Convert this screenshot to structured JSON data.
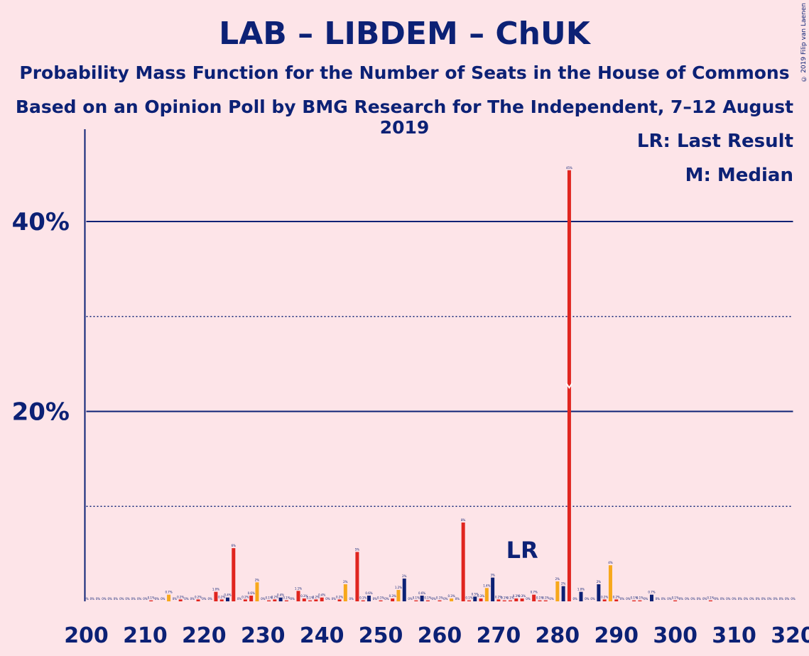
{
  "title": "LAB – LIBDEM – ChUK",
  "subtitle1": "Probability Mass Function for the Number of Seats in the House of Commons",
  "subtitle2": "Based on an Opinion Poll by BMG Research for The Independent, 7–12 August 2019",
  "legend": {
    "lr": "LR: Last Result",
    "median": "M: Median"
  },
  "copyright": "© 2019 Filip van Laenen",
  "chart_data": {
    "type": "bar",
    "xlim": [
      200,
      320
    ],
    "ylim": [
      0,
      49
    ],
    "yticks": [
      {
        "value": 20,
        "label": "20%"
      },
      {
        "value": 40,
        "label": "40%"
      }
    ],
    "dotted_gridlines": [
      10,
      30
    ],
    "xticks": [
      200,
      210,
      220,
      230,
      240,
      250,
      260,
      270,
      280,
      290,
      300,
      310,
      320
    ],
    "last_result": {
      "seat": 274,
      "label": "LR"
    },
    "median": {
      "seat": 282
    },
    "colors": {
      "red": "#e0251f",
      "orange": "#f7a81b",
      "dark": "#0c2175",
      "background": "#fde4e8"
    },
    "bars": [
      {
        "x": 200,
        "v": 0,
        "l": "0%",
        "c": "red"
      },
      {
        "x": 201,
        "v": 0,
        "l": "0%",
        "c": "red"
      },
      {
        "x": 202,
        "v": 0,
        "l": "0%",
        "c": "red"
      },
      {
        "x": 203,
        "v": 0,
        "l": "0%",
        "c": "red"
      },
      {
        "x": 204,
        "v": 0,
        "l": "0%",
        "c": "red"
      },
      {
        "x": 205,
        "v": 0,
        "l": "0%",
        "c": "red"
      },
      {
        "x": 206,
        "v": 0,
        "l": "0%",
        "c": "red"
      },
      {
        "x": 207,
        "v": 0,
        "l": "0%",
        "c": "red"
      },
      {
        "x": 208,
        "v": 0,
        "l": "0%",
        "c": "red"
      },
      {
        "x": 209,
        "v": 0,
        "l": "0%",
        "c": "red"
      },
      {
        "x": 210,
        "v": 0,
        "l": "0%",
        "c": "red"
      },
      {
        "x": 211,
        "v": 0.1,
        "l": "0.1%",
        "c": "red"
      },
      {
        "x": 212,
        "v": 0,
        "l": "0%",
        "c": "red"
      },
      {
        "x": 213,
        "v": 0,
        "l": "0%",
        "c": "red"
      },
      {
        "x": 214,
        "v": 0.7,
        "l": "0.7%",
        "c": "orange"
      },
      {
        "x": 215,
        "v": 0,
        "l": "0%",
        "c": "red"
      },
      {
        "x": 216,
        "v": 0.2,
        "l": "0.2%",
        "c": "red"
      },
      {
        "x": 217,
        "v": 0,
        "l": "0%",
        "c": "red"
      },
      {
        "x": 218,
        "v": 0,
        "l": "0%",
        "c": "red"
      },
      {
        "x": 219,
        "v": 0.2,
        "l": "0.2%",
        "c": "red"
      },
      {
        "x": 220,
        "v": 0,
        "l": "0%",
        "c": "red"
      },
      {
        "x": 221,
        "v": 0,
        "l": "0%",
        "c": "red"
      },
      {
        "x": 222,
        "v": 1.0,
        "l": "1.0%",
        "c": "red"
      },
      {
        "x": 223,
        "v": 0.2,
        "l": "0.2%",
        "c": "red"
      },
      {
        "x": 224,
        "v": 0.4,
        "l": "0.4%",
        "c": "dark"
      },
      {
        "x": 225,
        "v": 5.6,
        "l": "6%",
        "c": "red"
      },
      {
        "x": 226,
        "v": 0,
        "l": "0%",
        "c": "red"
      },
      {
        "x": 227,
        "v": 0.2,
        "l": "0.2%",
        "c": "red"
      },
      {
        "x": 228,
        "v": 0.6,
        "l": "0.6%",
        "c": "red"
      },
      {
        "x": 229,
        "v": 2.0,
        "l": "2%",
        "c": "orange"
      },
      {
        "x": 230,
        "v": 0,
        "l": "0%",
        "c": "red"
      },
      {
        "x": 231,
        "v": 0.1,
        "l": "0.1%",
        "c": "red"
      },
      {
        "x": 232,
        "v": 0.2,
        "l": "0.2%",
        "c": "red"
      },
      {
        "x": 233,
        "v": 0.4,
        "l": "0.4%",
        "c": "dark"
      },
      {
        "x": 234,
        "v": 0.1,
        "l": "0.1%",
        "c": "red"
      },
      {
        "x": 235,
        "v": 0,
        "l": "0%",
        "c": "red"
      },
      {
        "x": 236,
        "v": 1.1,
        "l": "1.1%",
        "c": "red"
      },
      {
        "x": 237,
        "v": 0.3,
        "l": "0.3%",
        "c": "red"
      },
      {
        "x": 238,
        "v": 0.1,
        "l": "0.1%",
        "c": "red"
      },
      {
        "x": 239,
        "v": 0.2,
        "l": "0.2%",
        "c": "red"
      },
      {
        "x": 240,
        "v": 0.4,
        "l": "0.4%",
        "c": "red"
      },
      {
        "x": 241,
        "v": 0,
        "l": "0%",
        "c": "red"
      },
      {
        "x": 242,
        "v": 0,
        "l": "0%",
        "c": "red"
      },
      {
        "x": 243,
        "v": 0.2,
        "l": "0.2%",
        "c": "red"
      },
      {
        "x": 244,
        "v": 1.8,
        "l": "2%",
        "c": "orange"
      },
      {
        "x": 245,
        "v": 0,
        "l": "0%",
        "c": "red"
      },
      {
        "x": 246,
        "v": 5.2,
        "l": "5%",
        "c": "red"
      },
      {
        "x": 247,
        "v": 0.1,
        "l": "0.1%",
        "c": "red"
      },
      {
        "x": 248,
        "v": 0.6,
        "l": "0.6%",
        "c": "dark"
      },
      {
        "x": 249,
        "v": 0,
        "l": "0%",
        "c": "red"
      },
      {
        "x": 250,
        "v": 0.1,
        "l": "0.1%",
        "c": "red"
      },
      {
        "x": 251,
        "v": 0,
        "l": "0%",
        "c": "red"
      },
      {
        "x": 252,
        "v": 0.3,
        "l": "0.3%",
        "c": "red"
      },
      {
        "x": 253,
        "v": 1.2,
        "l": "1.2%",
        "c": "orange"
      },
      {
        "x": 254,
        "v": 2.4,
        "l": "2%",
        "c": "dark"
      },
      {
        "x": 255,
        "v": 0,
        "l": "0%",
        "c": "red"
      },
      {
        "x": 256,
        "v": 0.1,
        "l": "0.1%",
        "c": "red"
      },
      {
        "x": 257,
        "v": 0.6,
        "l": "0.6%",
        "c": "dark"
      },
      {
        "x": 258,
        "v": 0.1,
        "l": "0.1%",
        "c": "red"
      },
      {
        "x": 259,
        "v": 0,
        "l": "0%",
        "c": "red"
      },
      {
        "x": 260,
        "v": 0.1,
        "l": "0.1%",
        "c": "red"
      },
      {
        "x": 261,
        "v": 0,
        "l": "0%",
        "c": "red"
      },
      {
        "x": 262,
        "v": 0.3,
        "l": "0.3%",
        "c": "orange"
      },
      {
        "x": 263,
        "v": 0,
        "l": "0%",
        "c": "red"
      },
      {
        "x": 264,
        "v": 8.3,
        "l": "8%",
        "c": "red"
      },
      {
        "x": 265,
        "v": 0.1,
        "l": "0.1%",
        "c": "red"
      },
      {
        "x": 266,
        "v": 0.5,
        "l": "0.5%",
        "c": "dark"
      },
      {
        "x": 267,
        "v": 0.3,
        "l": "0.3%",
        "c": "red"
      },
      {
        "x": 268,
        "v": 1.4,
        "l": "1.4%",
        "c": "orange"
      },
      {
        "x": 269,
        "v": 2.5,
        "l": "3%",
        "c": "dark"
      },
      {
        "x": 270,
        "v": 0.2,
        "l": "0.2%",
        "c": "red"
      },
      {
        "x": 271,
        "v": 0.1,
        "l": "0.1%",
        "c": "red"
      },
      {
        "x": 272,
        "v": 0.1,
        "l": "0.1%",
        "c": "red"
      },
      {
        "x": 273,
        "v": 0.3,
        "l": "0.3%",
        "c": "red"
      },
      {
        "x": 274,
        "v": 0.3,
        "l": "0.3%",
        "c": "red"
      },
      {
        "x": 275,
        "v": 0,
        "l": "0%",
        "c": "red"
      },
      {
        "x": 276,
        "v": 0.7,
        "l": "0.7%",
        "c": "red"
      },
      {
        "x": 277,
        "v": 0.1,
        "l": "0.1%",
        "c": "red"
      },
      {
        "x": 278,
        "v": 0.1,
        "l": "0.1%",
        "c": "red"
      },
      {
        "x": 279,
        "v": 0,
        "l": "0%",
        "c": "red"
      },
      {
        "x": 280,
        "v": 2.1,
        "l": "2%",
        "c": "orange"
      },
      {
        "x": 281,
        "v": 1.6,
        "l": "2%",
        "c": "dark"
      },
      {
        "x": 282,
        "v": 45.4,
        "l": "45%",
        "c": "red"
      },
      {
        "x": 283,
        "v": 0,
        "l": "0%",
        "c": "red"
      },
      {
        "x": 284,
        "v": 1.0,
        "l": "1.0%",
        "c": "dark"
      },
      {
        "x": 285,
        "v": 0,
        "l": "0%",
        "c": "red"
      },
      {
        "x": 286,
        "v": 0,
        "l": "0%",
        "c": "red"
      },
      {
        "x": 287,
        "v": 1.8,
        "l": "2%",
        "c": "dark"
      },
      {
        "x": 288,
        "v": 0.2,
        "l": "0.2%",
        "c": "red"
      },
      {
        "x": 289,
        "v": 3.8,
        "l": "4%",
        "c": "orange"
      },
      {
        "x": 290,
        "v": 0.2,
        "l": "0.2%",
        "c": "red"
      },
      {
        "x": 291,
        "v": 0,
        "l": "0%",
        "c": "red"
      },
      {
        "x": 292,
        "v": 0,
        "l": "0%",
        "c": "red"
      },
      {
        "x": 293,
        "v": 0.1,
        "l": "0.1%",
        "c": "red"
      },
      {
        "x": 294,
        "v": 0.1,
        "l": "0.1%",
        "c": "red"
      },
      {
        "x": 295,
        "v": 0,
        "l": "0%",
        "c": "red"
      },
      {
        "x": 296,
        "v": 0.7,
        "l": "0.7%",
        "c": "dark"
      },
      {
        "x": 297,
        "v": 0,
        "l": "0%",
        "c": "red"
      },
      {
        "x": 298,
        "v": 0,
        "l": "0%",
        "c": "red"
      },
      {
        "x": 299,
        "v": 0,
        "l": "0%",
        "c": "red"
      },
      {
        "x": 300,
        "v": 0.1,
        "l": "0.1%",
        "c": "red"
      },
      {
        "x": 301,
        "v": 0,
        "l": "0%",
        "c": "red"
      },
      {
        "x": 302,
        "v": 0,
        "l": "0%",
        "c": "red"
      },
      {
        "x": 303,
        "v": 0,
        "l": "0%",
        "c": "red"
      },
      {
        "x": 304,
        "v": 0,
        "l": "0%",
        "c": "red"
      },
      {
        "x": 305,
        "v": 0,
        "l": "0%",
        "c": "red"
      },
      {
        "x": 306,
        "v": 0.1,
        "l": "0.1%",
        "c": "red"
      },
      {
        "x": 307,
        "v": 0,
        "l": "0%",
        "c": "red"
      },
      {
        "x": 308,
        "v": 0,
        "l": "0%",
        "c": "red"
      },
      {
        "x": 309,
        "v": 0,
        "l": "0%",
        "c": "red"
      },
      {
        "x": 310,
        "v": 0,
        "l": "0%",
        "c": "red"
      },
      {
        "x": 311,
        "v": 0,
        "l": "0%",
        "c": "red"
      },
      {
        "x": 312,
        "v": 0,
        "l": "0%",
        "c": "red"
      },
      {
        "x": 313,
        "v": 0,
        "l": "0%",
        "c": "red"
      },
      {
        "x": 314,
        "v": 0,
        "l": "0%",
        "c": "red"
      },
      {
        "x": 315,
        "v": 0,
        "l": "0%",
        "c": "red"
      },
      {
        "x": 316,
        "v": 0,
        "l": "0%",
        "c": "red"
      },
      {
        "x": 317,
        "v": 0,
        "l": "0%",
        "c": "red"
      },
      {
        "x": 318,
        "v": 0,
        "l": "0%",
        "c": "red"
      },
      {
        "x": 319,
        "v": 0,
        "l": "0%",
        "c": "red"
      },
      {
        "x": 320,
        "v": 0,
        "l": "0%",
        "c": "red"
      }
    ]
  }
}
